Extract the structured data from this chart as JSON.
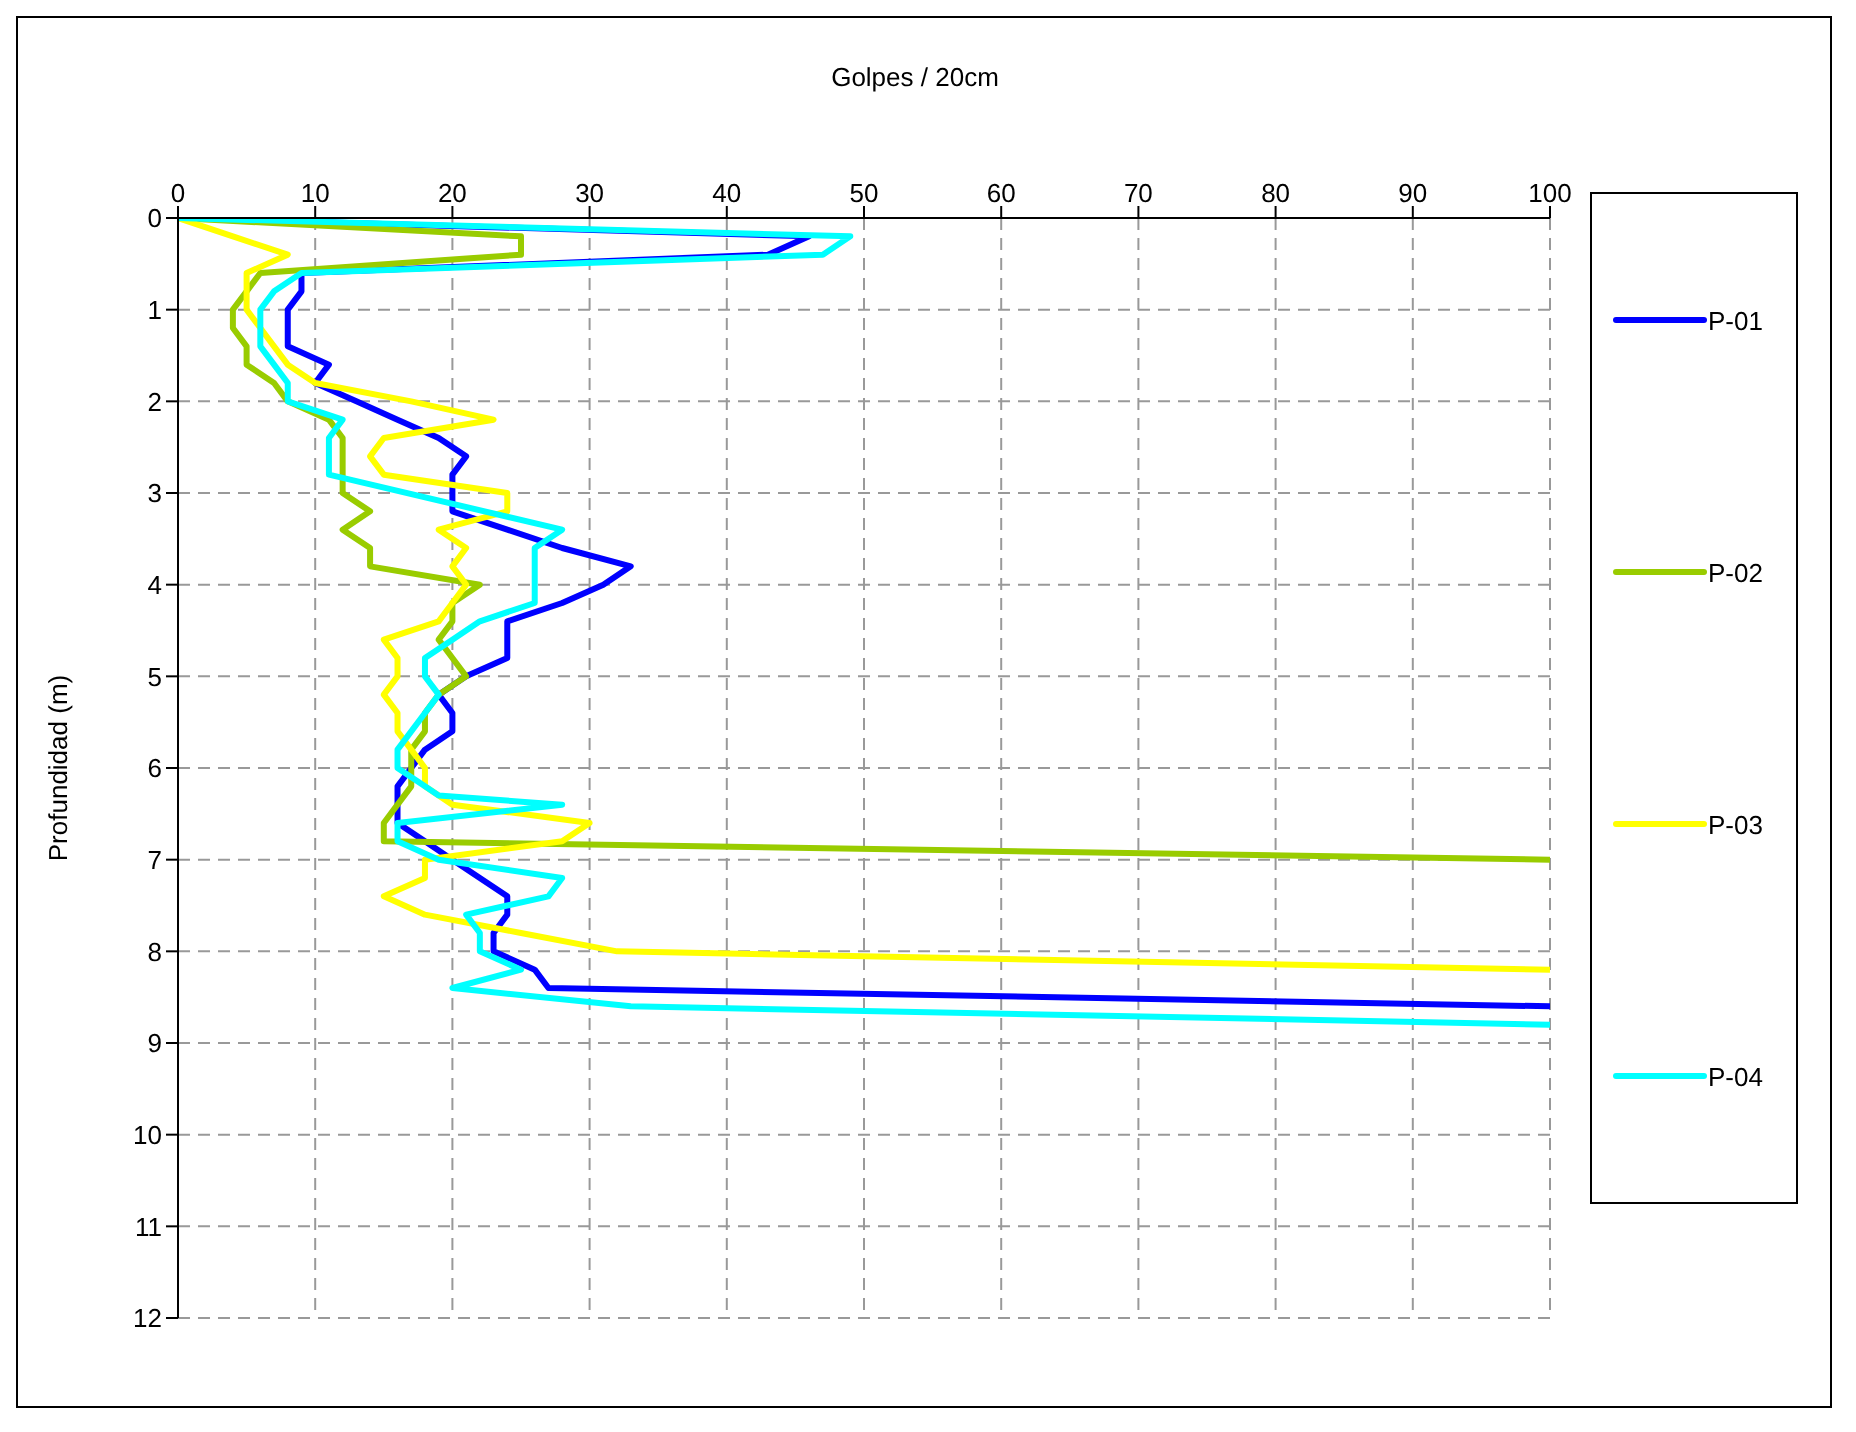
{
  "chart_data": {
    "type": "line",
    "xlabel": "Golpes / 20cm",
    "ylabel": "Profundidad (m)",
    "xlim": [
      0,
      100
    ],
    "xticks": [
      0,
      10,
      20,
      30,
      40,
      50,
      60,
      70,
      80,
      90,
      100
    ],
    "ylim": [
      12,
      0
    ],
    "yticks": [
      0,
      1,
      2,
      3,
      4,
      5,
      6,
      7,
      8,
      9,
      10,
      11,
      12
    ],
    "grid": true,
    "legend": "right",
    "marker": "none",
    "line_style": "solid",
    "series": [
      {
        "name": "P-01",
        "color": "#0000ff",
        "x": [
          0,
          46,
          43,
          9,
          9,
          8,
          8,
          8,
          11,
          10,
          13,
          16,
          19,
          21,
          20,
          20,
          20,
          24,
          28,
          33,
          31,
          28,
          24,
          24,
          24,
          21,
          19,
          20,
          20,
          18,
          17,
          16,
          16,
          16,
          18,
          20,
          22,
          24,
          24,
          23,
          23,
          26,
          27,
          100
        ],
        "values": [
          0,
          0.2,
          0.4,
          0.6,
          0.8,
          1.0,
          1.2,
          1.4,
          1.6,
          1.8,
          2.0,
          2.2,
          2.4,
          2.6,
          2.8,
          3.0,
          3.2,
          3.4,
          3.6,
          3.8,
          4.0,
          4.2,
          4.4,
          4.6,
          4.8,
          5.0,
          5.2,
          5.4,
          5.6,
          5.8,
          6.0,
          6.2,
          6.4,
          6.6,
          6.8,
          7.0,
          7.2,
          7.4,
          7.6,
          7.8,
          8.0,
          8.2,
          8.4,
          8.6
        ]
      },
      {
        "name": "P-02",
        "color": "#99cc00",
        "x": [
          0,
          25,
          25,
          6,
          5,
          4,
          4,
          5,
          5,
          7,
          8,
          11,
          12,
          12,
          12,
          12,
          14,
          12,
          14,
          14,
          22,
          20,
          20,
          19,
          20,
          21,
          19,
          18,
          18,
          17,
          17,
          17,
          16,
          15,
          15,
          100
        ],
        "values": [
          0,
          0.2,
          0.4,
          0.6,
          0.8,
          1.0,
          1.2,
          1.4,
          1.6,
          1.8,
          2.0,
          2.2,
          2.4,
          2.6,
          2.8,
          3.0,
          3.2,
          3.4,
          3.6,
          3.8,
          4.0,
          4.2,
          4.4,
          4.6,
          4.8,
          5.0,
          5.2,
          5.4,
          5.6,
          5.8,
          6.0,
          6.2,
          6.4,
          6.6,
          6.8,
          7.0
        ]
      },
      {
        "name": "P-03",
        "color": "#ffff00",
        "x": [
          0,
          4,
          8,
          5,
          5,
          5,
          6,
          7,
          8,
          10,
          17,
          23,
          15,
          14,
          15,
          24,
          24,
          19,
          21,
          20,
          21,
          20,
          19,
          15,
          16,
          16,
          15,
          16,
          16,
          17,
          18,
          18,
          20,
          30,
          28,
          18,
          18,
          15,
          18,
          25,
          32,
          100
        ],
        "values": [
          0,
          0.2,
          0.4,
          0.6,
          0.8,
          1.0,
          1.2,
          1.4,
          1.6,
          1.8,
          2.0,
          2.2,
          2.4,
          2.6,
          2.8,
          3.0,
          3.2,
          3.4,
          3.6,
          3.8,
          4.0,
          4.2,
          4.4,
          4.6,
          4.8,
          5.0,
          5.2,
          5.4,
          5.6,
          5.8,
          6.0,
          6.2,
          6.4,
          6.6,
          6.8,
          7.0,
          7.2,
          7.4,
          7.6,
          7.8,
          8.0,
          8.2
        ]
      },
      {
        "name": "P-04",
        "color": "#00ffff",
        "x": [
          0,
          49,
          47,
          9,
          7,
          6,
          6,
          6,
          7,
          8,
          8,
          12,
          11,
          11,
          11,
          28,
          26,
          26,
          26,
          26,
          22,
          20,
          18,
          18,
          19,
          18,
          17,
          16,
          16,
          18,
          19,
          28,
          16,
          16,
          19,
          28,
          27,
          21,
          22,
          22,
          25,
          20,
          33,
          100
        ],
        "values": [
          0,
          0.2,
          0.4,
          0.6,
          0.8,
          1.0,
          1.2,
          1.4,
          1.6,
          1.8,
          2.0,
          2.2,
          2.4,
          2.6,
          2.8,
          3.4,
          3.6,
          3.8,
          4.0,
          4.2,
          4.4,
          4.6,
          4.8,
          5.0,
          5.2,
          5.4,
          5.6,
          5.8,
          6.0,
          6.2,
          6.3,
          6.4,
          6.6,
          6.8,
          7.0,
          7.2,
          7.4,
          7.6,
          7.8,
          8.0,
          8.2,
          8.4,
          8.6,
          8.8
        ]
      }
    ]
  }
}
